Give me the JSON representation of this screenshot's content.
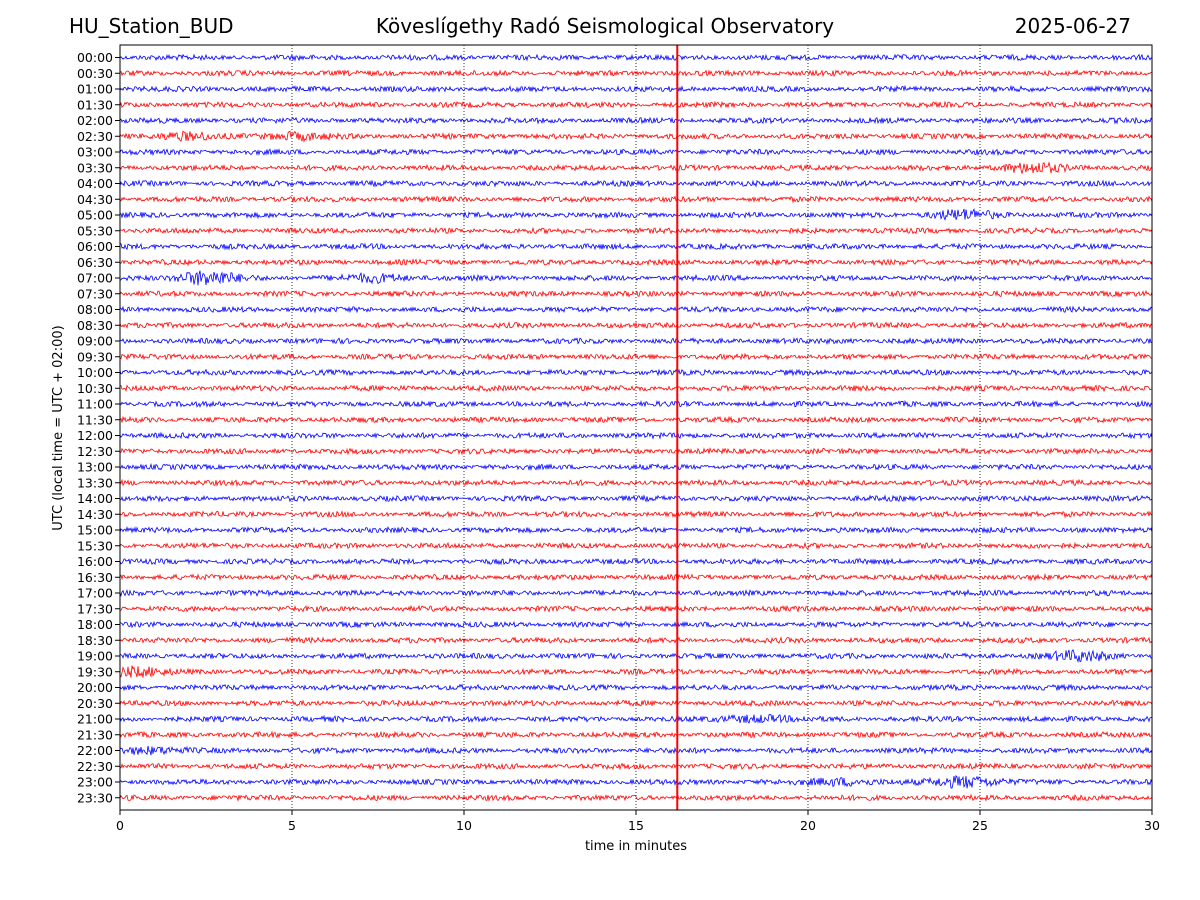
{
  "header": {
    "station": "HU_Station_BUD",
    "observatory": "Köveslígethy Radó Seismological Observatory",
    "date": "2025-06-27"
  },
  "chart_data": {
    "type": "line",
    "title": "Köveslígethy Radó Seismological Observatory",
    "xlabel": "time in minutes",
    "ylabel": "UTC (local time = UTC + 02:00)",
    "xlim": [
      0,
      30
    ],
    "x_ticks": [
      "0",
      "5",
      "10",
      "15",
      "20",
      "25",
      "30"
    ],
    "rows": [
      "00:00",
      "00:30",
      "01:00",
      "01:30",
      "02:00",
      "02:30",
      "03:00",
      "03:30",
      "04:00",
      "04:30",
      "05:00",
      "05:30",
      "06:00",
      "06:30",
      "07:00",
      "07:30",
      "08:00",
      "08:30",
      "09:00",
      "09:30",
      "10:00",
      "10:30",
      "11:00",
      "11:30",
      "12:00",
      "12:30",
      "13:00",
      "13:30",
      "14:00",
      "14:30",
      "15:00",
      "15:30",
      "16:00",
      "16:30",
      "17:00",
      "17:30",
      "18:00",
      "18:30",
      "19:00",
      "19:30",
      "20:00",
      "20:30",
      "21:00",
      "21:30",
      "22:00",
      "22:30",
      "23:00",
      "23:30"
    ],
    "colors": [
      "#0000ff",
      "#ff0000"
    ],
    "vertical_marker_minute": 16.2,
    "grid": "vertical-dotted",
    "events": [
      {
        "row": "02:30",
        "minute": 1.8,
        "amp": 3
      },
      {
        "row": "02:30",
        "minute": 5.0,
        "amp": 3
      },
      {
        "row": "03:30",
        "minute": 26.5,
        "amp": 4
      },
      {
        "row": "05:00",
        "minute": 24.5,
        "amp": 4
      },
      {
        "row": "07:00",
        "minute": 2.5,
        "amp": 6
      },
      {
        "row": "07:00",
        "minute": 7.5,
        "amp": 3
      },
      {
        "row": "19:00",
        "minute": 27.9,
        "amp": 4
      },
      {
        "row": "19:30",
        "minute": 0.3,
        "amp": 4
      },
      {
        "row": "21:00",
        "minute": 18.5,
        "amp": 3
      },
      {
        "row": "22:00",
        "minute": 0.8,
        "amp": 3
      },
      {
        "row": "23:00",
        "minute": 24.6,
        "amp": 5
      },
      {
        "row": "23:00",
        "minute": 21.0,
        "amp": 3
      }
    ]
  }
}
